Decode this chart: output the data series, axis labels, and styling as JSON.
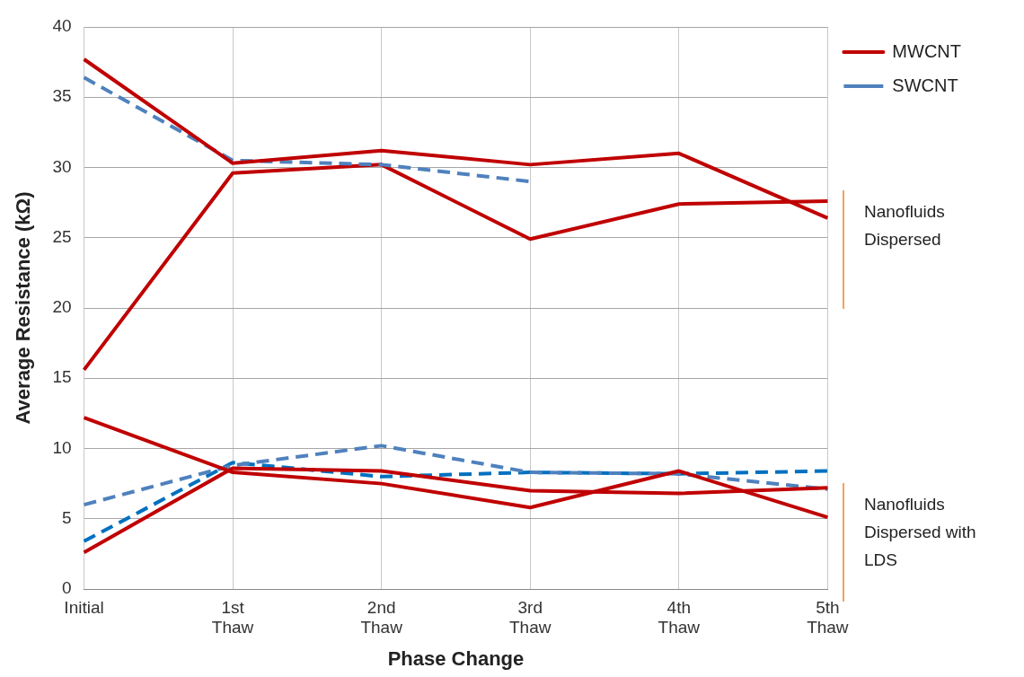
{
  "chart_data": {
    "type": "line",
    "xlabel": "Phase Change",
    "ylabel": "Average Resistance (kΩ)",
    "categories": [
      "Initial",
      "1st Thaw",
      "2nd Thaw",
      "3rd Thaw",
      "4th Thaw",
      "5th Thaw"
    ],
    "series": [
      {
        "name": "MWCNT",
        "color": "#c00000",
        "line_style": "solid",
        "values": [
          37.7,
          30.3,
          31.2,
          30.2,
          31.0,
          26.4
        ]
      },
      {
        "name": "SWCNT",
        "color": "#4f81bd",
        "line_style": "dashed",
        "values": [
          36.4,
          30.5,
          30.2,
          29.0,
          null,
          null
        ]
      },
      {
        "color": "#c00000",
        "line_style": "solid",
        "values": [
          15.6,
          29.6,
          30.2,
          24.9,
          27.4,
          27.6
        ]
      },
      {
        "color": "#c00000",
        "line_style": "solid",
        "values": [
          12.2,
          8.3,
          7.5,
          5.8,
          8.4,
          5.1
        ]
      },
      {
        "color": "#c00000",
        "line_style": "solid",
        "values": [
          2.6,
          8.6,
          8.4,
          7.0,
          6.8,
          7.2
        ]
      },
      {
        "color": "#4f81bd",
        "line_style": "dashed",
        "values": [
          6.0,
          8.8,
          10.2,
          8.3,
          8.2,
          7.1
        ]
      },
      {
        "color": "#0070c0",
        "line_style": "dashed",
        "values": [
          3.4,
          9.0,
          8.0,
          8.3,
          8.2,
          8.4
        ]
      }
    ],
    "ylim": [
      0,
      40
    ],
    "yticks": [
      0,
      5,
      10,
      15,
      20,
      25,
      30,
      35,
      40
    ],
    "grid": true,
    "legend": "top right",
    "marker": "none",
    "annotations": [
      "Nanofluids Dispersed",
      "Nanofluids Dispersed with LDS"
    ]
  }
}
